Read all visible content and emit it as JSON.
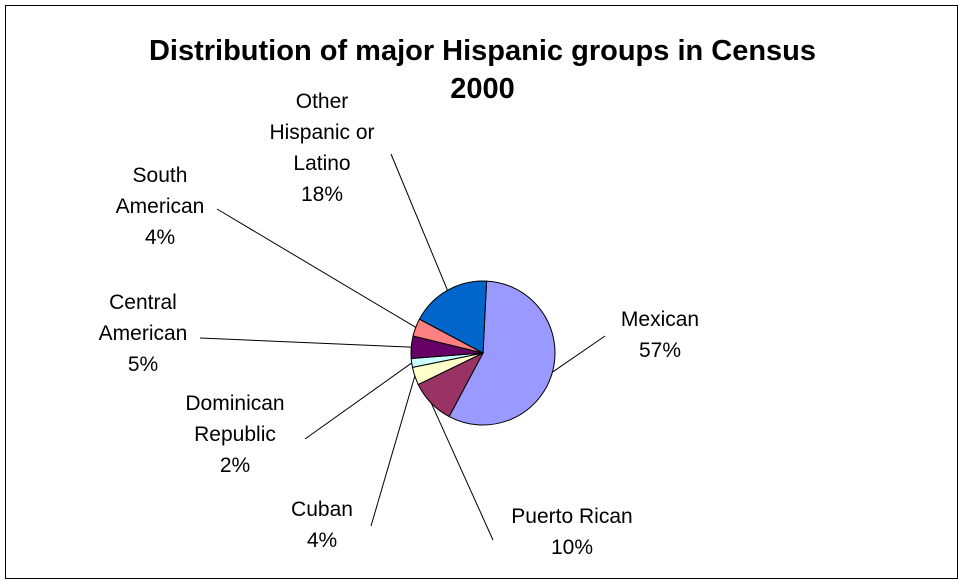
{
  "chart_data": {
    "type": "pie",
    "title_lines": [
      "Distribution of major Hispanic groups in Census",
      "2000"
    ],
    "slices": [
      {
        "name": "Mexican",
        "percent_label": "57%",
        "value": 57,
        "color": "#9999FF"
      },
      {
        "name": "Puerto Rican",
        "percent_label": "10%",
        "value": 10,
        "color": "#993366"
      },
      {
        "name": "Cuban",
        "percent_label": "4%",
        "value": 4,
        "color": "#FFFFCC"
      },
      {
        "name": "Dominican Republic",
        "percent_label": "2%",
        "value": 2,
        "color": "#CCFFFF"
      },
      {
        "name": "Central American",
        "percent_label": "5%",
        "value": 5,
        "color": "#660066"
      },
      {
        "name": "South American",
        "percent_label": "4%",
        "value": 4,
        "color": "#FF8080"
      },
      {
        "name": "Other Hispanic or Latino",
        "percent_label": "18%",
        "value": 18,
        "color": "#0066CC"
      }
    ],
    "legend": "none",
    "data_labels": "category name and percentage with leader lines"
  }
}
